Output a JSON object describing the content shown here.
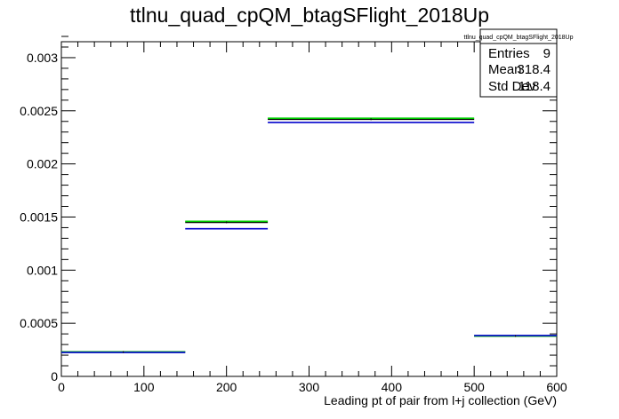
{
  "chart_data": {
    "type": "histogram",
    "title": "ttlnu_quad_cpQM_btagSFlight_2018Up",
    "xlabel": "Leading pt of pair from l+j collection (GeV)",
    "ylabel": "",
    "xlim": [
      0,
      600
    ],
    "ylim": [
      0,
      0.00315
    ],
    "grid": false,
    "x_ticks": [
      0,
      100,
      200,
      300,
      400,
      500,
      600
    ],
    "x_tick_labels": [
      "0",
      "100",
      "200",
      "300",
      "400",
      "500",
      "600"
    ],
    "y_ticks": [
      0,
      0.0005,
      0.001,
      0.0015,
      0.002,
      0.0025,
      0.003
    ],
    "y_tick_labels": [
      "0",
      "0.0005",
      "0.001",
      "0.0015",
      "0.002",
      "0.0025",
      "0.003"
    ],
    "bin_edges": [
      0,
      150,
      250,
      500,
      600
    ],
    "series": [
      {
        "color": "#000000",
        "values": [
          0.00023,
          0.00145,
          0.00242,
          0.00038
        ]
      },
      {
        "color": "#00cc00",
        "values": [
          0.00023,
          0.00146,
          0.00243,
          0.00038
        ]
      },
      {
        "color": "#0000cc",
        "values": [
          0.000225,
          0.00139,
          0.00239,
          0.000385
        ]
      }
    ],
    "stats_box": {
      "name": "ttlnu_quad_cpQM_btagSFlight_2018Up",
      "rows": [
        {
          "label": "Entries",
          "value": "9"
        },
        {
          "label": "Mean",
          "value": "318.4"
        },
        {
          "label": "Std Dev",
          "value": "118.4"
        }
      ]
    }
  }
}
